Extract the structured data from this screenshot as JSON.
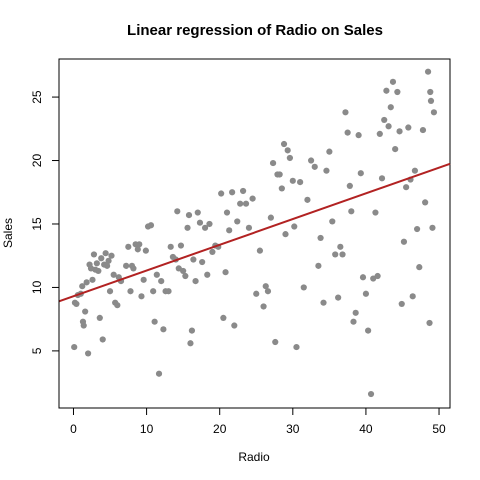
{
  "chart_data": {
    "type": "scatter",
    "title": "Linear regression of Radio on Sales",
    "xlabel": "Radio",
    "ylabel": "Sales",
    "xlim": [
      -1.98,
      51.5
    ],
    "ylim": [
      0.5,
      28
    ],
    "x_ticks": [
      0,
      10,
      20,
      30,
      40,
      50
    ],
    "y_ticks": [
      5,
      10,
      15,
      20,
      25
    ],
    "grid": false,
    "legend": "none",
    "point_color": "#8a8a8a",
    "line_color": "#b22222",
    "regression": {
      "intercept": 9.31,
      "slope": 0.2025
    },
    "points": [
      [
        0.1,
        5.3
      ],
      [
        0.2,
        8.8
      ],
      [
        0.4,
        8.7
      ],
      [
        0.6,
        9.4
      ],
      [
        1.0,
        9.5
      ],
      [
        1.2,
        10.1
      ],
      [
        1.3,
        7.3
      ],
      [
        1.4,
        7.0
      ],
      [
        1.6,
        8.1
      ],
      [
        1.8,
        10.4
      ],
      [
        2.0,
        4.8
      ],
      [
        2.2,
        11.8
      ],
      [
        2.4,
        11.5
      ],
      [
        2.6,
        10.6
      ],
      [
        2.8,
        12.6
      ],
      [
        3.0,
        11.4
      ],
      [
        3.2,
        11.9
      ],
      [
        3.4,
        11.3
      ],
      [
        3.6,
        7.6
      ],
      [
        3.8,
        12.3
      ],
      [
        4.0,
        5.9
      ],
      [
        4.2,
        11.8
      ],
      [
        4.4,
        12.7
      ],
      [
        4.6,
        11.7
      ],
      [
        4.8,
        12.1
      ],
      [
        5.0,
        9.7
      ],
      [
        5.2,
        12.5
      ],
      [
        5.5,
        11.0
      ],
      [
        5.7,
        8.8
      ],
      [
        6.0,
        8.6
      ],
      [
        6.2,
        10.8
      ],
      [
        6.5,
        10.5
      ],
      [
        7.2,
        11.7
      ],
      [
        7.5,
        13.2
      ],
      [
        7.8,
        9.7
      ],
      [
        8.0,
        11.7
      ],
      [
        8.2,
        11.5
      ],
      [
        8.5,
        13.4
      ],
      [
        8.8,
        13.0
      ],
      [
        9.0,
        13.4
      ],
      [
        9.3,
        9.3
      ],
      [
        9.6,
        10.6
      ],
      [
        9.9,
        12.9
      ],
      [
        10.2,
        14.8
      ],
      [
        10.6,
        14.9
      ],
      [
        10.9,
        9.7
      ],
      [
        11.1,
        7.3
      ],
      [
        11.4,
        11.0
      ],
      [
        11.7,
        3.2
      ],
      [
        12.0,
        10.5
      ],
      [
        12.3,
        6.7
      ],
      [
        12.6,
        9.7
      ],
      [
        13.0,
        9.7
      ],
      [
        13.3,
        13.2
      ],
      [
        13.6,
        12.4
      ],
      [
        14.0,
        12.2
      ],
      [
        14.2,
        16.0
      ],
      [
        14.4,
        11.5
      ],
      [
        14.7,
        13.3
      ],
      [
        15.0,
        11.3
      ],
      [
        15.3,
        10.9
      ],
      [
        15.6,
        14.7
      ],
      [
        15.8,
        15.7
      ],
      [
        16.0,
        5.6
      ],
      [
        16.2,
        6.6
      ],
      [
        16.4,
        12.2
      ],
      [
        16.7,
        10.5
      ],
      [
        17.0,
        15.9
      ],
      [
        17.3,
        15.1
      ],
      [
        17.6,
        12.0
      ],
      [
        18.0,
        14.7
      ],
      [
        18.3,
        11.0
      ],
      [
        18.6,
        15.0
      ],
      [
        19.0,
        12.8
      ],
      [
        19.4,
        13.3
      ],
      [
        19.8,
        13.2
      ],
      [
        20.2,
        17.4
      ],
      [
        20.5,
        7.6
      ],
      [
        20.8,
        11.2
      ],
      [
        21.0,
        15.9
      ],
      [
        21.3,
        14.5
      ],
      [
        21.7,
        17.5
      ],
      [
        22.0,
        7.0
      ],
      [
        22.4,
        15.2
      ],
      [
        22.8,
        16.6
      ],
      [
        23.2,
        17.6
      ],
      [
        23.6,
        16.6
      ],
      [
        24.0,
        14.7
      ],
      [
        24.5,
        17.0
      ],
      [
        25.0,
        9.5
      ],
      [
        25.5,
        12.9
      ],
      [
        26.0,
        8.5
      ],
      [
        26.3,
        10.1
      ],
      [
        26.6,
        9.7
      ],
      [
        27.0,
        15.5
      ],
      [
        27.3,
        19.8
      ],
      [
        27.6,
        5.7
      ],
      [
        27.9,
        18.9
      ],
      [
        28.2,
        18.9
      ],
      [
        28.5,
        17.8
      ],
      [
        28.8,
        21.3
      ],
      [
        29.0,
        14.2
      ],
      [
        29.3,
        20.8
      ],
      [
        29.6,
        20.2
      ],
      [
        30.0,
        18.4
      ],
      [
        30.2,
        14.8
      ],
      [
        30.5,
        5.3
      ],
      [
        31.0,
        18.3
      ],
      [
        31.5,
        10.0
      ],
      [
        32.0,
        16.9
      ],
      [
        32.5,
        20.0
      ],
      [
        33.0,
        19.5
      ],
      [
        33.5,
        11.7
      ],
      [
        33.8,
        13.9
      ],
      [
        34.2,
        8.8
      ],
      [
        34.6,
        19.2
      ],
      [
        35.0,
        20.7
      ],
      [
        35.4,
        15.2
      ],
      [
        35.8,
        12.6
      ],
      [
        36.2,
        9.2
      ],
      [
        36.5,
        13.2
      ],
      [
        36.8,
        12.6
      ],
      [
        37.2,
        23.8
      ],
      [
        37.5,
        22.2
      ],
      [
        37.8,
        18.0
      ],
      [
        38.0,
        16.0
      ],
      [
        38.3,
        7.3
      ],
      [
        38.6,
        8.0
      ],
      [
        39.0,
        22.0
      ],
      [
        39.3,
        19.0
      ],
      [
        39.6,
        10.8
      ],
      [
        40.0,
        9.5
      ],
      [
        40.3,
        6.6
      ],
      [
        40.7,
        1.6
      ],
      [
        41.0,
        10.7
      ],
      [
        41.3,
        15.9
      ],
      [
        41.6,
        10.9
      ],
      [
        41.9,
        22.1
      ],
      [
        42.2,
        18.6
      ],
      [
        42.5,
        23.2
      ],
      [
        42.8,
        25.5
      ],
      [
        43.1,
        22.7
      ],
      [
        43.4,
        24.2
      ],
      [
        43.7,
        26.2
      ],
      [
        44.0,
        20.9
      ],
      [
        44.3,
        25.4
      ],
      [
        44.6,
        22.3
      ],
      [
        44.9,
        8.7
      ],
      [
        45.2,
        13.6
      ],
      [
        45.5,
        17.9
      ],
      [
        45.8,
        22.6
      ],
      [
        46.1,
        18.5
      ],
      [
        46.4,
        9.3
      ],
      [
        46.7,
        19.2
      ],
      [
        47.0,
        14.6
      ],
      [
        47.3,
        11.6
      ],
      [
        47.8,
        22.4
      ],
      [
        48.1,
        16.7
      ],
      [
        48.5,
        27.0
      ],
      [
        48.7,
        7.2
      ],
      [
        48.8,
        25.4
      ],
      [
        48.9,
        24.7
      ],
      [
        49.1,
        14.7
      ],
      [
        49.3,
        23.8
      ]
    ]
  }
}
